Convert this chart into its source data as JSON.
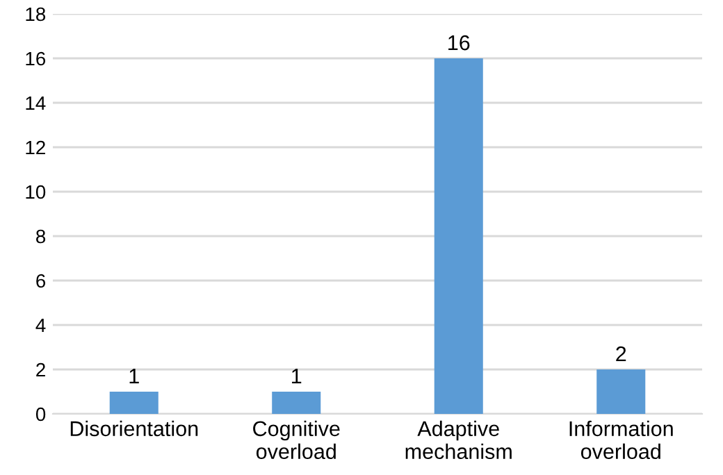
{
  "chart_data": {
    "type": "bar",
    "categories": [
      "Disorientation",
      "Cognitive\noverload",
      "Adaptive\nmechanism",
      "Information\noverload"
    ],
    "values": [
      1,
      1,
      16,
      2
    ],
    "color": "#5b9bd5",
    "ylim": [
      0,
      18
    ],
    "yticks": [
      0,
      2,
      4,
      6,
      8,
      10,
      12,
      14,
      16,
      18
    ],
    "grid": "y",
    "data_labels": true
  }
}
